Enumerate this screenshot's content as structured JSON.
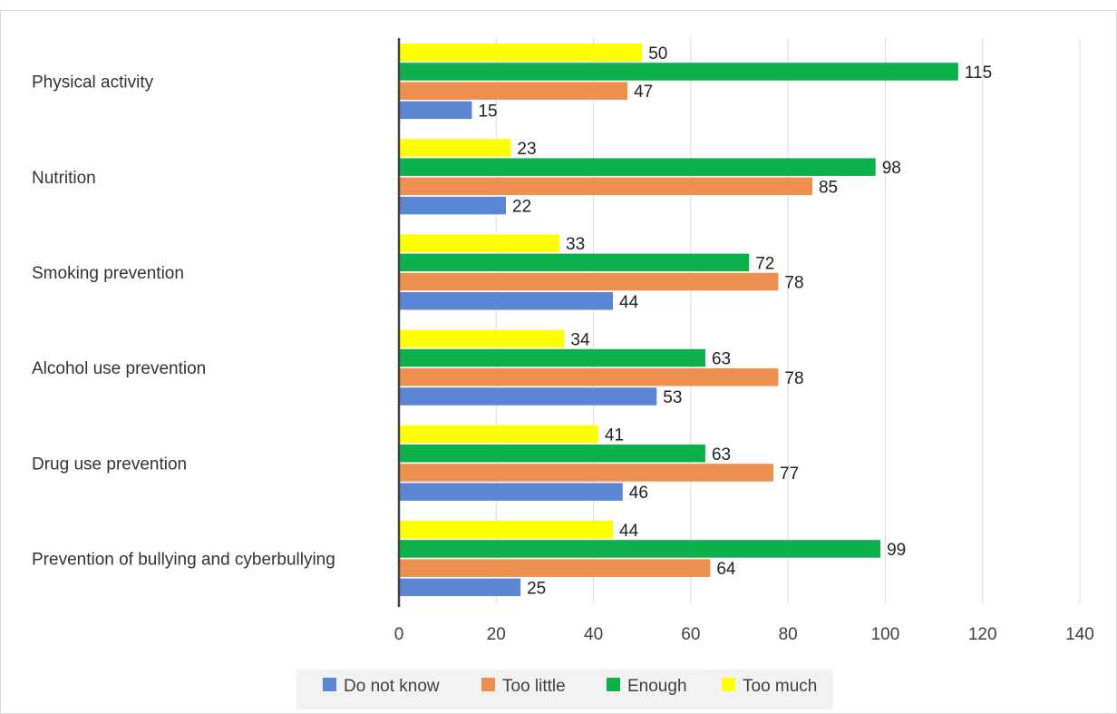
{
  "chart_data": {
    "type": "bar",
    "orientation": "horizontal",
    "title": "",
    "xlabel": "",
    "ylabel": "",
    "xlim": [
      0,
      140
    ],
    "x_ticks": [
      0,
      20,
      40,
      60,
      80,
      100,
      120,
      140
    ],
    "grid": "vertical",
    "legend_position": "bottom",
    "categories": [
      "Physical activity",
      "Nutrition",
      "Smoking prevention",
      "Alcohol use prevention",
      "Drug use prevention",
      "Prevention of bullying and cyberbullying"
    ],
    "series": [
      {
        "name": "Do not know",
        "color": "#5b86d4",
        "values": [
          15,
          22,
          44,
          53,
          46,
          25
        ]
      },
      {
        "name": "Too little",
        "color": "#ed8f4e",
        "values": [
          47,
          85,
          78,
          78,
          77,
          64
        ]
      },
      {
        "name": "Enough",
        "color": "#0db14b",
        "values": [
          115,
          98,
          72,
          63,
          63,
          99
        ]
      },
      {
        "name": "Too much",
        "color": "#ffff00",
        "values": [
          50,
          23,
          33,
          34,
          41,
          44
        ]
      }
    ]
  }
}
